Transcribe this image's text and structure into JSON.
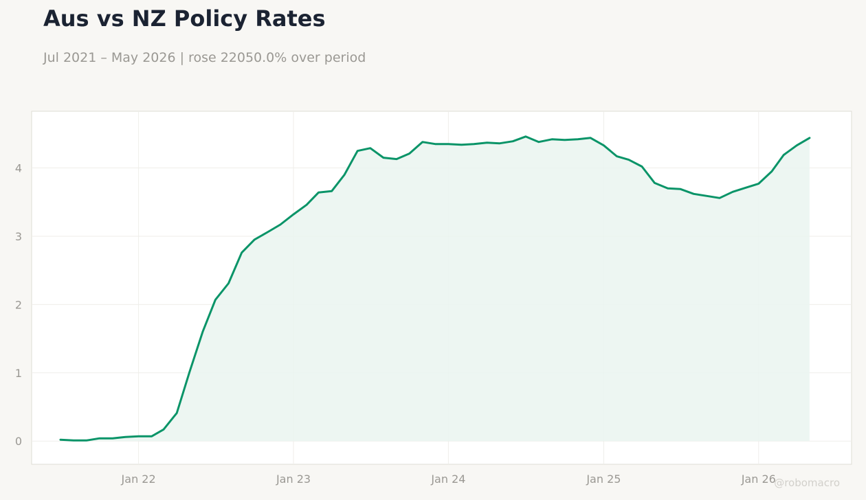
{
  "header": {
    "title": "Aus vs NZ Policy Rates",
    "subtitle": "Jul 2021 – May 2026 | rose 22050.0% over period"
  },
  "watermark": "@robomacro",
  "colors": {
    "background": "#f8f7f4",
    "plot_background": "#ffffff",
    "line": "#0a9468",
    "fill": "#eaf4f0",
    "axis_text": "#9a9893",
    "title": "#1b2332"
  },
  "chart_data": {
    "type": "area",
    "title": "Aus vs NZ Policy Rates",
    "subtitle": "Jul 2021 – May 2026 | rose 22050.0% over period",
    "xlabel": "",
    "ylabel": "",
    "x_ticks": [
      {
        "label": "Jan 22",
        "date": "2022-01-01"
      },
      {
        "label": "Jan 23",
        "date": "2023-01-01"
      },
      {
        "label": "Jan 24",
        "date": "2024-01-01"
      },
      {
        "label": "Jan 25",
        "date": "2025-01-01"
      },
      {
        "label": "Jan 26",
        "date": "2026-01-01"
      }
    ],
    "y_ticks": [
      0,
      1,
      2,
      3,
      4
    ],
    "xlim": [
      "2021-04-24",
      "2026-08-08"
    ],
    "ylim": [
      -0.34,
      4.83
    ],
    "grid": true,
    "series": [
      {
        "points": [
          [
            "2021-07",
            0.02
          ],
          [
            "2021-08",
            0.01
          ],
          [
            "2021-09",
            0.01
          ],
          [
            "2021-10",
            0.04
          ],
          [
            "2021-11",
            0.04
          ],
          [
            "2021-12",
            0.06
          ],
          [
            "2022-01",
            0.07
          ],
          [
            "2022-02",
            0.07
          ],
          [
            "2022-03",
            0.17
          ],
          [
            "2022-04",
            0.41
          ],
          [
            "2022-05",
            1.01
          ],
          [
            "2022-06",
            1.6
          ],
          [
            "2022-07",
            2.07
          ],
          [
            "2022-08",
            2.31
          ],
          [
            "2022-09",
            2.76
          ],
          [
            "2022-10",
            2.95
          ],
          [
            "2022-11",
            3.06
          ],
          [
            "2022-12",
            3.17
          ],
          [
            "2023-01",
            3.32
          ],
          [
            "2023-02",
            3.46
          ],
          [
            "2023-03",
            3.64
          ],
          [
            "2023-04",
            3.66
          ],
          [
            "2023-05",
            3.9
          ],
          [
            "2023-06",
            4.25
          ],
          [
            "2023-07",
            4.29
          ],
          [
            "2023-08",
            4.15
          ],
          [
            "2023-09",
            4.13
          ],
          [
            "2023-10",
            4.21
          ],
          [
            "2023-11",
            4.38
          ],
          [
            "2023-12",
            4.35
          ],
          [
            "2024-01",
            4.35
          ],
          [
            "2024-02",
            4.34
          ],
          [
            "2024-03",
            4.35
          ],
          [
            "2024-04",
            4.37
          ],
          [
            "2024-05",
            4.36
          ],
          [
            "2024-06",
            4.39
          ],
          [
            "2024-07",
            4.46
          ],
          [
            "2024-08",
            4.38
          ],
          [
            "2024-09",
            4.42
          ],
          [
            "2024-10",
            4.41
          ],
          [
            "2024-11",
            4.42
          ],
          [
            "2024-12",
            4.44
          ],
          [
            "2025-01",
            4.33
          ],
          [
            "2025-02",
            4.17
          ],
          [
            "2025-03",
            4.12
          ],
          [
            "2025-04",
            4.02
          ],
          [
            "2025-05",
            3.78
          ],
          [
            "2025-06",
            3.7
          ],
          [
            "2025-07",
            3.69
          ],
          [
            "2025-08",
            3.62
          ],
          [
            "2025-09",
            3.59
          ],
          [
            "2025-10",
            3.56
          ],
          [
            "2025-11",
            3.65
          ],
          [
            "2025-12",
            3.71
          ],
          [
            "2026-01",
            3.77
          ],
          [
            "2026-02",
            3.95
          ],
          [
            "2026-03",
            4.19
          ],
          [
            "2026-04",
            4.33
          ],
          [
            "2026-05",
            4.44
          ]
        ]
      }
    ]
  }
}
